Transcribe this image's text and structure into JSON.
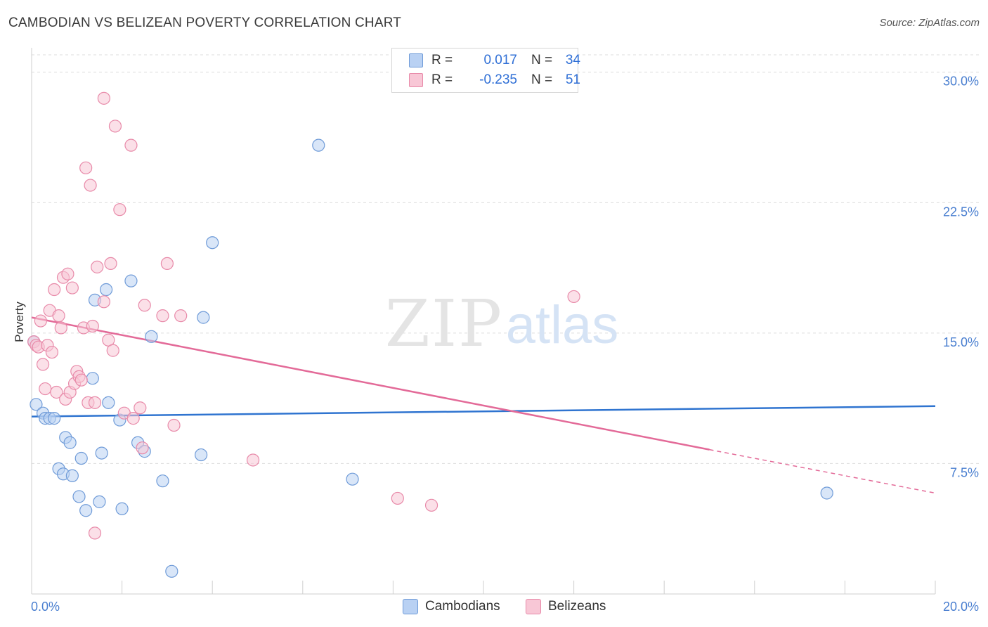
{
  "title": "CAMBODIAN VS BELIZEAN POVERTY CORRELATION CHART",
  "source": "Source: ZipAtlas.com",
  "watermark": {
    "zip": "ZIP",
    "atlas": "atlas"
  },
  "legend": [
    {
      "r_label": "R =",
      "r_value": "0.017",
      "n_label": "N =",
      "n_value": "34"
    },
    {
      "r_label": "R =",
      "r_value": "-0.235",
      "n_label": "N =",
      "n_value": "51"
    }
  ],
  "bottom_legend": [
    "Cambodians",
    "Belizeans"
  ],
  "colors": {
    "blue_fill": "#b9d1f3",
    "blue_stroke": "#6f9bd8",
    "blue_line": "#2f74d0",
    "pink_fill": "#f8c7d6",
    "pink_stroke": "#e88aa9",
    "pink_line": "#e36a98",
    "tick_text": "#4a7fd0",
    "grid": "#dcdcdc"
  },
  "chart_data": {
    "type": "scatter",
    "title": "CAMBODIAN VS BELIZEAN POVERTY CORRELATION CHART",
    "xlabel": "",
    "ylabel": "Poverty",
    "xlim": [
      0,
      20
    ],
    "ylim": [
      0,
      31
    ],
    "x_tick_labels": [
      "0.0%",
      "20.0%"
    ],
    "y_ticks": [
      7.5,
      15.0,
      22.5,
      30.0
    ],
    "y_tick_labels": [
      "7.5%",
      "15.0%",
      "22.5%",
      "30.0%"
    ],
    "grid": true,
    "series": [
      {
        "name": "Cambodians",
        "color": "#6f9bd8",
        "points": [
          [
            0.1,
            10.9
          ],
          [
            0.25,
            10.4
          ],
          [
            0.3,
            10.1
          ],
          [
            0.4,
            10.1
          ],
          [
            0.5,
            10.1
          ],
          [
            0.6,
            7.2
          ],
          [
            0.7,
            6.9
          ],
          [
            0.75,
            9.0
          ],
          [
            0.85,
            8.7
          ],
          [
            0.9,
            6.8
          ],
          [
            1.05,
            5.6
          ],
          [
            1.1,
            7.8
          ],
          [
            1.2,
            4.8
          ],
          [
            1.35,
            12.4
          ],
          [
            1.4,
            16.9
          ],
          [
            1.5,
            5.3
          ],
          [
            1.55,
            8.1
          ],
          [
            1.65,
            17.5
          ],
          [
            1.7,
            11.0
          ],
          [
            1.95,
            10.0
          ],
          [
            2.0,
            4.9
          ],
          [
            2.2,
            18.0
          ],
          [
            2.35,
            8.7
          ],
          [
            2.5,
            8.2
          ],
          [
            2.65,
            14.8
          ],
          [
            2.9,
            6.5
          ],
          [
            3.1,
            1.3
          ],
          [
            3.75,
            8.0
          ],
          [
            3.8,
            15.9
          ],
          [
            4.0,
            20.2
          ],
          [
            6.35,
            25.8
          ],
          [
            7.1,
            6.6
          ],
          [
            17.6,
            5.8
          ],
          [
            0.05,
            14.5
          ]
        ],
        "trend": {
          "x": [
            0,
            20
          ],
          "y": [
            10.2,
            10.8
          ]
        }
      },
      {
        "name": "Belizeans",
        "color": "#e88aa9",
        "points": [
          [
            0.05,
            14.5
          ],
          [
            0.1,
            14.3
          ],
          [
            0.15,
            14.2
          ],
          [
            0.2,
            15.7
          ],
          [
            0.25,
            13.2
          ],
          [
            0.3,
            11.8
          ],
          [
            0.35,
            14.3
          ],
          [
            0.4,
            16.3
          ],
          [
            0.45,
            13.9
          ],
          [
            0.5,
            17.5
          ],
          [
            0.55,
            11.6
          ],
          [
            0.6,
            16.0
          ],
          [
            0.65,
            15.3
          ],
          [
            0.7,
            18.2
          ],
          [
            0.75,
            11.2
          ],
          [
            0.8,
            18.4
          ],
          [
            0.85,
            11.6
          ],
          [
            0.9,
            17.6
          ],
          [
            0.95,
            12.1
          ],
          [
            1.0,
            12.8
          ],
          [
            1.05,
            12.5
          ],
          [
            1.1,
            12.3
          ],
          [
            1.15,
            15.3
          ],
          [
            1.2,
            24.5
          ],
          [
            1.25,
            11.0
          ],
          [
            1.3,
            23.5
          ],
          [
            1.35,
            15.4
          ],
          [
            1.4,
            11.0
          ],
          [
            1.45,
            18.8
          ],
          [
            1.6,
            16.8
          ],
          [
            1.6,
            28.5
          ],
          [
            1.7,
            14.6
          ],
          [
            1.75,
            19.0
          ],
          [
            1.8,
            14.0
          ],
          [
            1.85,
            26.9
          ],
          [
            1.95,
            22.1
          ],
          [
            2.05,
            10.4
          ],
          [
            2.2,
            25.8
          ],
          [
            2.25,
            10.1
          ],
          [
            2.45,
            8.4
          ],
          [
            2.5,
            16.6
          ],
          [
            2.9,
            16.0
          ],
          [
            3.0,
            19.0
          ],
          [
            3.15,
            9.7
          ],
          [
            3.3,
            16.0
          ],
          [
            4.9,
            7.7
          ],
          [
            8.1,
            5.5
          ],
          [
            8.85,
            5.1
          ],
          [
            12.0,
            17.1
          ],
          [
            1.4,
            3.5
          ],
          [
            2.4,
            10.7
          ]
        ],
        "trend": {
          "x": [
            0,
            15
          ],
          "y": [
            15.9,
            8.3
          ]
        },
        "trend_dashed": {
          "x": [
            15,
            20
          ],
          "y": [
            8.3,
            5.8
          ]
        }
      }
    ]
  }
}
